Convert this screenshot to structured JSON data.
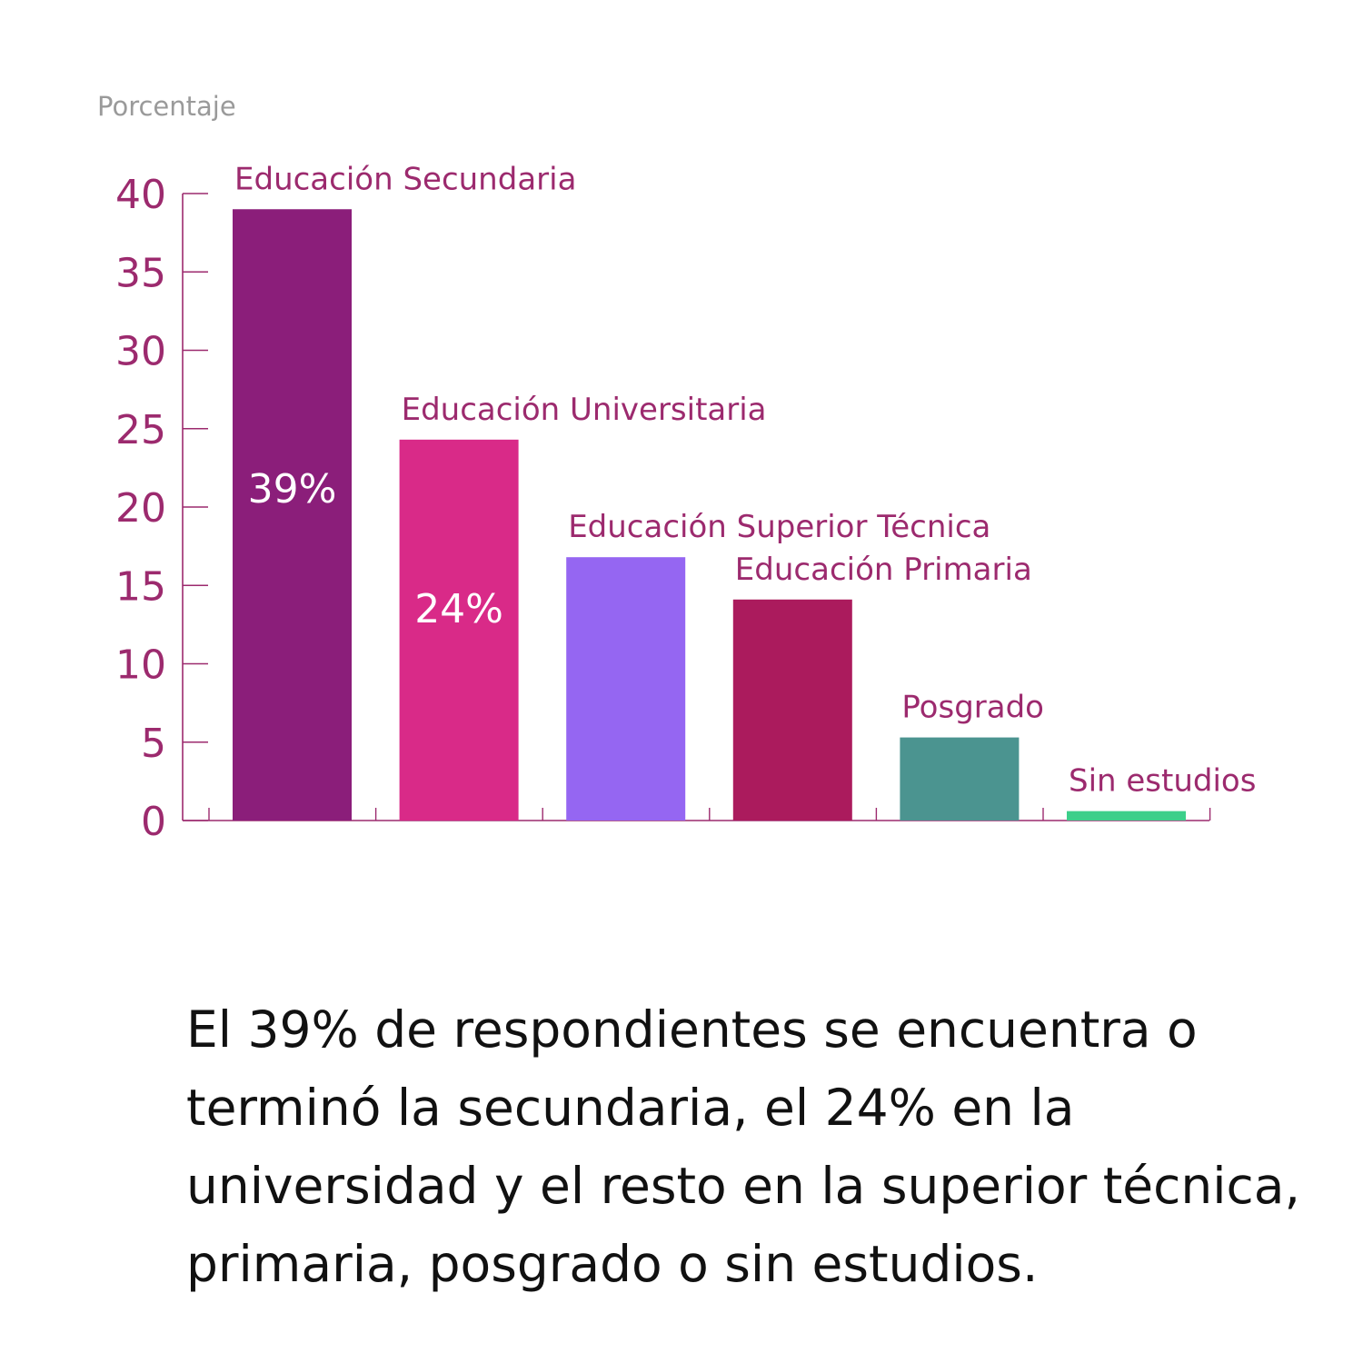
{
  "chart_data": {
    "type": "bar",
    "ylabel": "Porcentaje",
    "ylim": [
      0,
      40
    ],
    "yticks": [
      0,
      5,
      10,
      15,
      20,
      25,
      30,
      35,
      40
    ],
    "categories": [
      "Educación Secundaria",
      "Educación Universitaria",
      "Educación Superior Técnica",
      "Educación Primaria",
      "Posgrado",
      "Sin estudios"
    ],
    "values": [
      39,
      24.3,
      16.8,
      14.1,
      5.3,
      0.6
    ],
    "data_labels": [
      "39%",
      "24%",
      "",
      "",
      "",
      ""
    ],
    "colors": [
      "#8b1e7a",
      "#d92a88",
      "#9566f2",
      "#ab1b5d",
      "#4b9490",
      "#3ccf8a"
    ],
    "axis_color": "#9c2a6e",
    "label_color": "#9c2a6e"
  },
  "caption": "El 39% de respondientes se encuentra o terminó  la secundaria, el 24% en la universidad y  el resto en la superior técnica, primaria, posgrado o sin estudios."
}
